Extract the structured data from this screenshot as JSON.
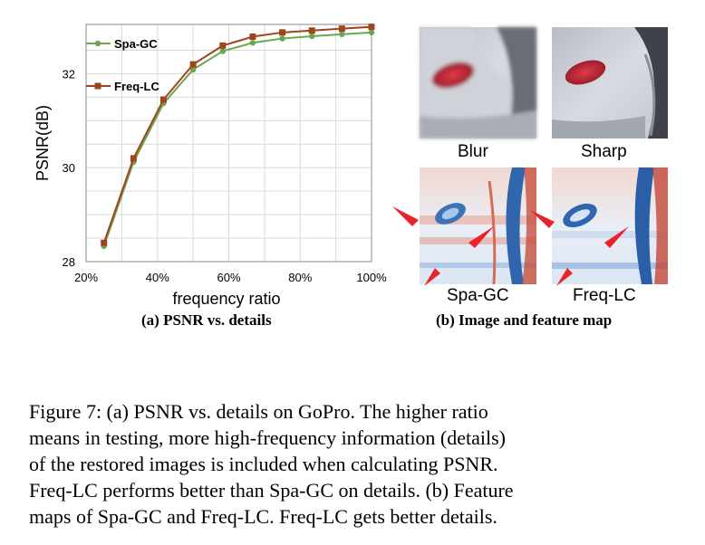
{
  "chart_data": {
    "type": "line",
    "x": [
      0.25,
      0.333,
      0.417,
      0.5,
      0.583,
      0.667,
      0.75,
      0.833,
      0.917,
      1.0
    ],
    "series": [
      {
        "name": "Spa-GC",
        "color": "#6aa84f",
        "marker": "circle",
        "values": [
          28.33,
          30.12,
          31.37,
          32.09,
          32.48,
          32.66,
          32.75,
          32.8,
          32.84,
          32.88
        ]
      },
      {
        "name": "Freq-LC",
        "color": "#a0441f",
        "marker": "square",
        "values": [
          28.4,
          30.2,
          31.45,
          32.2,
          32.6,
          32.79,
          32.88,
          32.92,
          32.96,
          33.0
        ]
      }
    ],
    "xlabel": "frequency ratio",
    "ylabel": "PSNR(dB)",
    "xlim": [
      0.2,
      1.0
    ],
    "ylim": [
      28,
      33.05
    ],
    "xticks": [
      0.2,
      0.4,
      0.6,
      0.8,
      1.0
    ],
    "xtick_labels": [
      "20%",
      "40%",
      "60%",
      "80%",
      "100%"
    ],
    "yticks": [
      28,
      30,
      32
    ],
    "ytick_labels": [
      "28",
      "30",
      "32"
    ],
    "grid": true,
    "legend": "top-left"
  },
  "figure": {
    "subcaption_a": "(a) PSNR vs. details",
    "subcaption_b": "(b) Image and feature map",
    "label_blur": "Blur",
    "label_sharp": "Sharp",
    "label_spa": "Spa-GC",
    "label_freq": "Freq-LC"
  },
  "caption": {
    "line1": "Figure 7: (a) PSNR vs. details on GoPro. The higher ratio",
    "line2": "means in testing, more high-frequency information (details)",
    "line3": "of the restored images is included when calculating PSNR.",
    "line4": "Freq-LC performs better than Spa-GC on details. (b) Feature",
    "line5": "maps of Spa-GC and Freq-LC. Freq-LC gets better details."
  }
}
